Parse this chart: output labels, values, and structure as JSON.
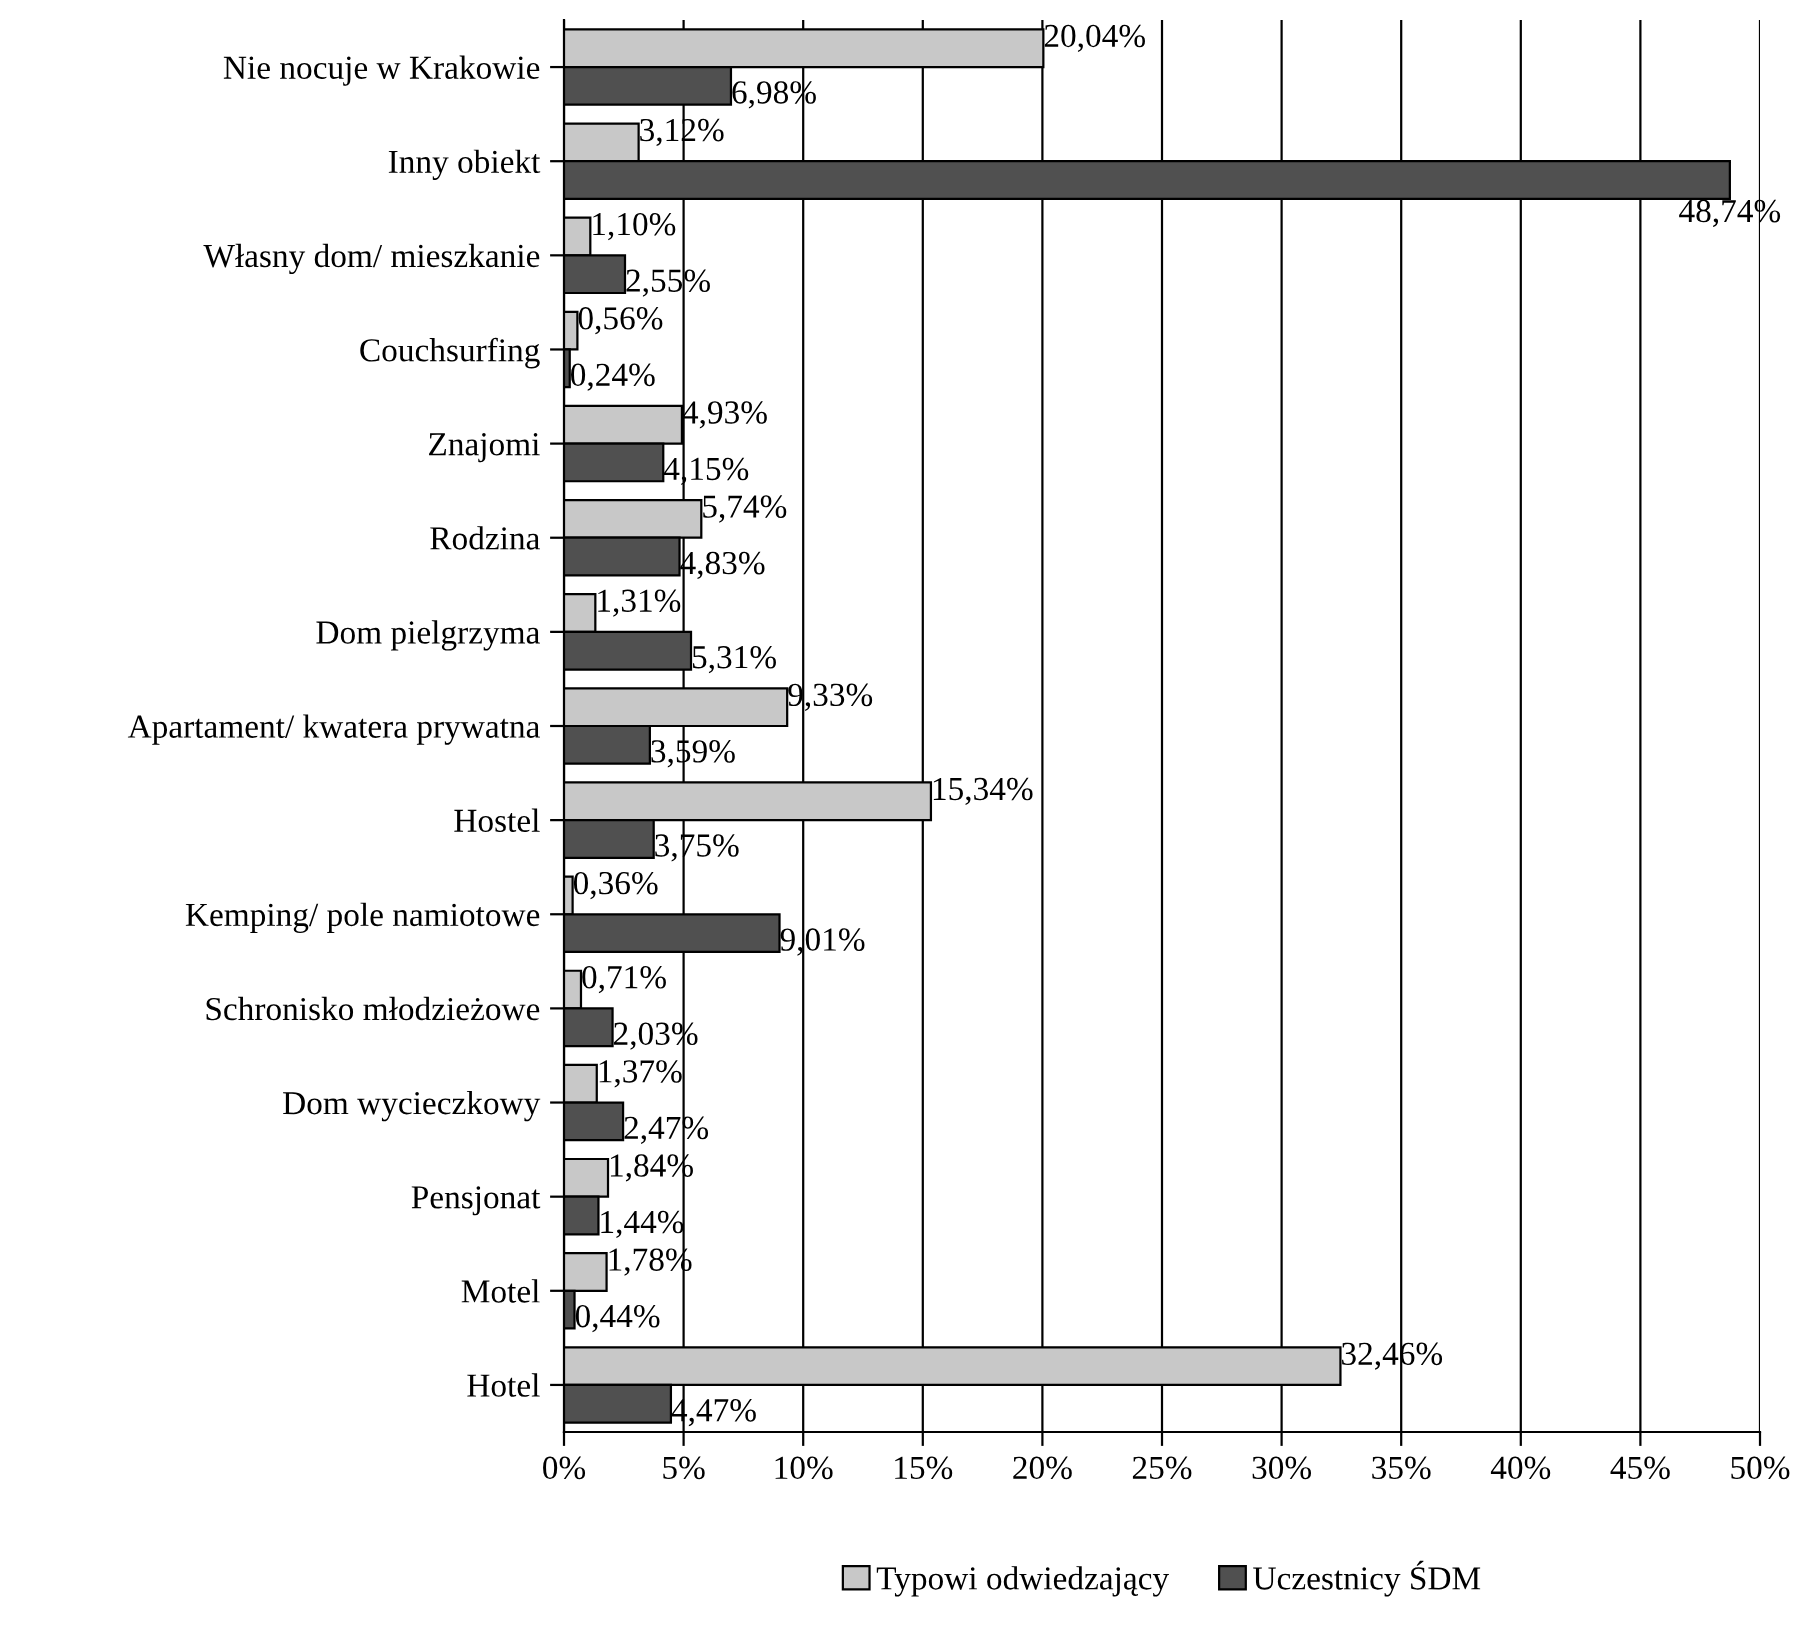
{
  "chart_data": {
    "type": "bar",
    "orientation": "horizontal",
    "categories": [
      "Nie nocuje w Krakowie",
      "Inny obiekt",
      "Własny dom/ mieszkanie",
      "Couchsurfing",
      "Znajomi",
      "Rodzina",
      "Dom pielgrzyma",
      "Apartament/ kwatera prywatna",
      "Hostel",
      "Kemping/ pole namiotowe",
      "Schronisko młodzieżowe",
      "Dom wycieczkowy",
      "Pensjonat",
      "Motel",
      "Hotel"
    ],
    "series": [
      {
        "name": "Typowi odwiedzający",
        "color": "#c8c8c8",
        "values": [
          20.04,
          3.12,
          1.1,
          0.56,
          4.93,
          5.74,
          1.31,
          9.33,
          15.34,
          0.36,
          0.71,
          1.37,
          1.84,
          1.78,
          32.46
        ],
        "value_labels": [
          "20,04%",
          "3,12%",
          "1,10%",
          "0,56%",
          "4,93%",
          "5,74%",
          "1,31%",
          "9,33%",
          "15,34%",
          "0,36%",
          "0,71%",
          "1,37%",
          "1,84%",
          "1,78%",
          "32,46%"
        ]
      },
      {
        "name": "Uczestnicy ŚDM",
        "color": "#505050",
        "values": [
          6.98,
          48.74,
          2.55,
          0.24,
          4.15,
          4.83,
          5.31,
          3.59,
          3.75,
          9.01,
          2.03,
          2.47,
          1.44,
          0.44,
          4.47
        ],
        "value_labels": [
          "6,98%",
          "48,74%",
          "2,55%",
          "0,24%",
          "4,15%",
          "4,83%",
          "5,31%",
          "3,59%",
          "3,75%",
          "9,01%",
          "2,03%",
          "2,47%",
          "1,44%",
          "0,44%",
          "4,47%"
        ]
      }
    ],
    "xlim": [
      0,
      50
    ],
    "xticks": [
      {
        "value": 0,
        "label": "0%"
      },
      {
        "value": 5,
        "label": "5%"
      },
      {
        "value": 10,
        "label": "10%"
      },
      {
        "value": 15,
        "label": "15%"
      },
      {
        "value": 20,
        "label": "20%"
      },
      {
        "value": 25,
        "label": "25%"
      },
      {
        "value": 30,
        "label": "30%"
      },
      {
        "value": 35,
        "label": "35%"
      },
      {
        "value": 40,
        "label": "40%"
      },
      {
        "value": 45,
        "label": "45%"
      },
      {
        "value": 50,
        "label": "50%"
      }
    ],
    "grid": "x",
    "legend": "bottom"
  }
}
